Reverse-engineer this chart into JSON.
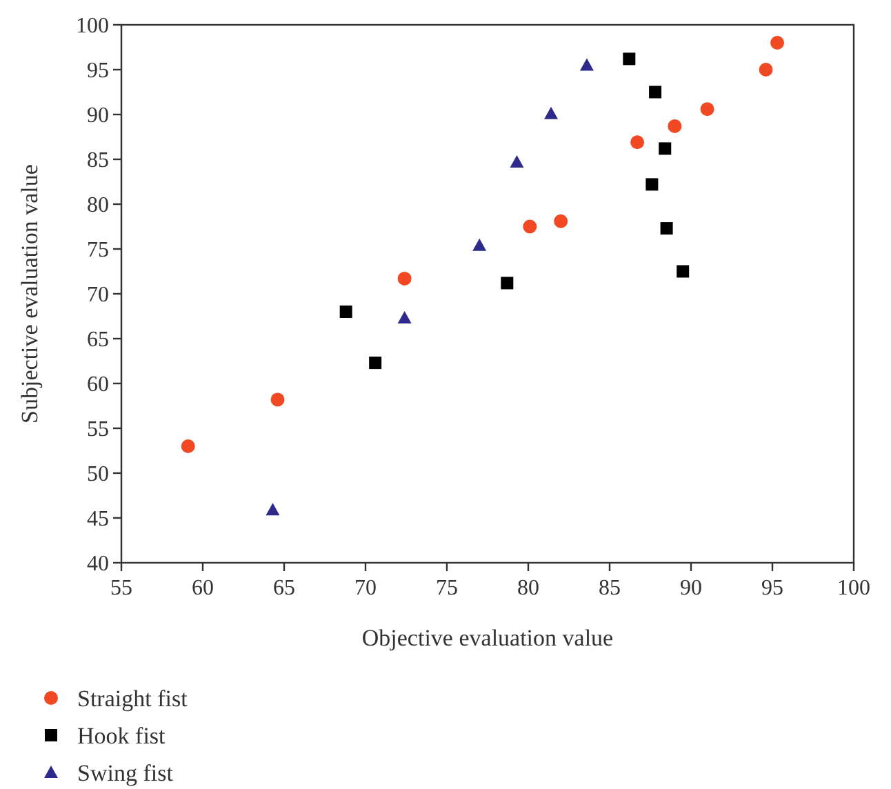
{
  "chart_data": {
    "type": "scatter",
    "xlabel": "Objective evaluation value",
    "ylabel": "Subjective evaluation value",
    "xlim": [
      55,
      100
    ],
    "xticks": [
      55,
      60,
      65,
      70,
      75,
      80,
      85,
      90,
      95,
      100
    ],
    "ylim": [
      40,
      100
    ],
    "yticks": [
      40,
      45,
      50,
      55,
      60,
      65,
      70,
      75,
      80,
      85,
      90,
      95,
      100
    ],
    "legend": "bottom",
    "grid": false,
    "series": [
      {
        "name": "Straight fist",
        "color": "#f04923",
        "marker": "circle",
        "x": [
          59.1,
          64.6,
          72.4,
          80.1,
          82.0,
          86.7,
          89.0,
          91.0,
          94.6,
          95.3
        ],
        "values": [
          53.0,
          58.2,
          71.7,
          77.5,
          78.1,
          86.9,
          88.7,
          90.6,
          95.0,
          98.0
        ]
      },
      {
        "name": "Hook fist",
        "color": "#000000",
        "marker": "square",
        "x": [
          68.8,
          70.6,
          78.7,
          86.2,
          87.8,
          88.4,
          87.6,
          88.5,
          89.5
        ],
        "values": [
          68.0,
          62.3,
          71.2,
          96.2,
          92.5,
          86.2,
          82.2,
          77.3,
          72.5
        ]
      },
      {
        "name": "Swing fist",
        "color": "#2e2a8c",
        "marker": "triangle",
        "x": [
          64.3,
          72.4,
          77.0,
          79.3,
          81.4,
          83.6
        ],
        "values": [
          45.9,
          67.3,
          75.4,
          84.7,
          90.1,
          95.5
        ]
      }
    ]
  }
}
